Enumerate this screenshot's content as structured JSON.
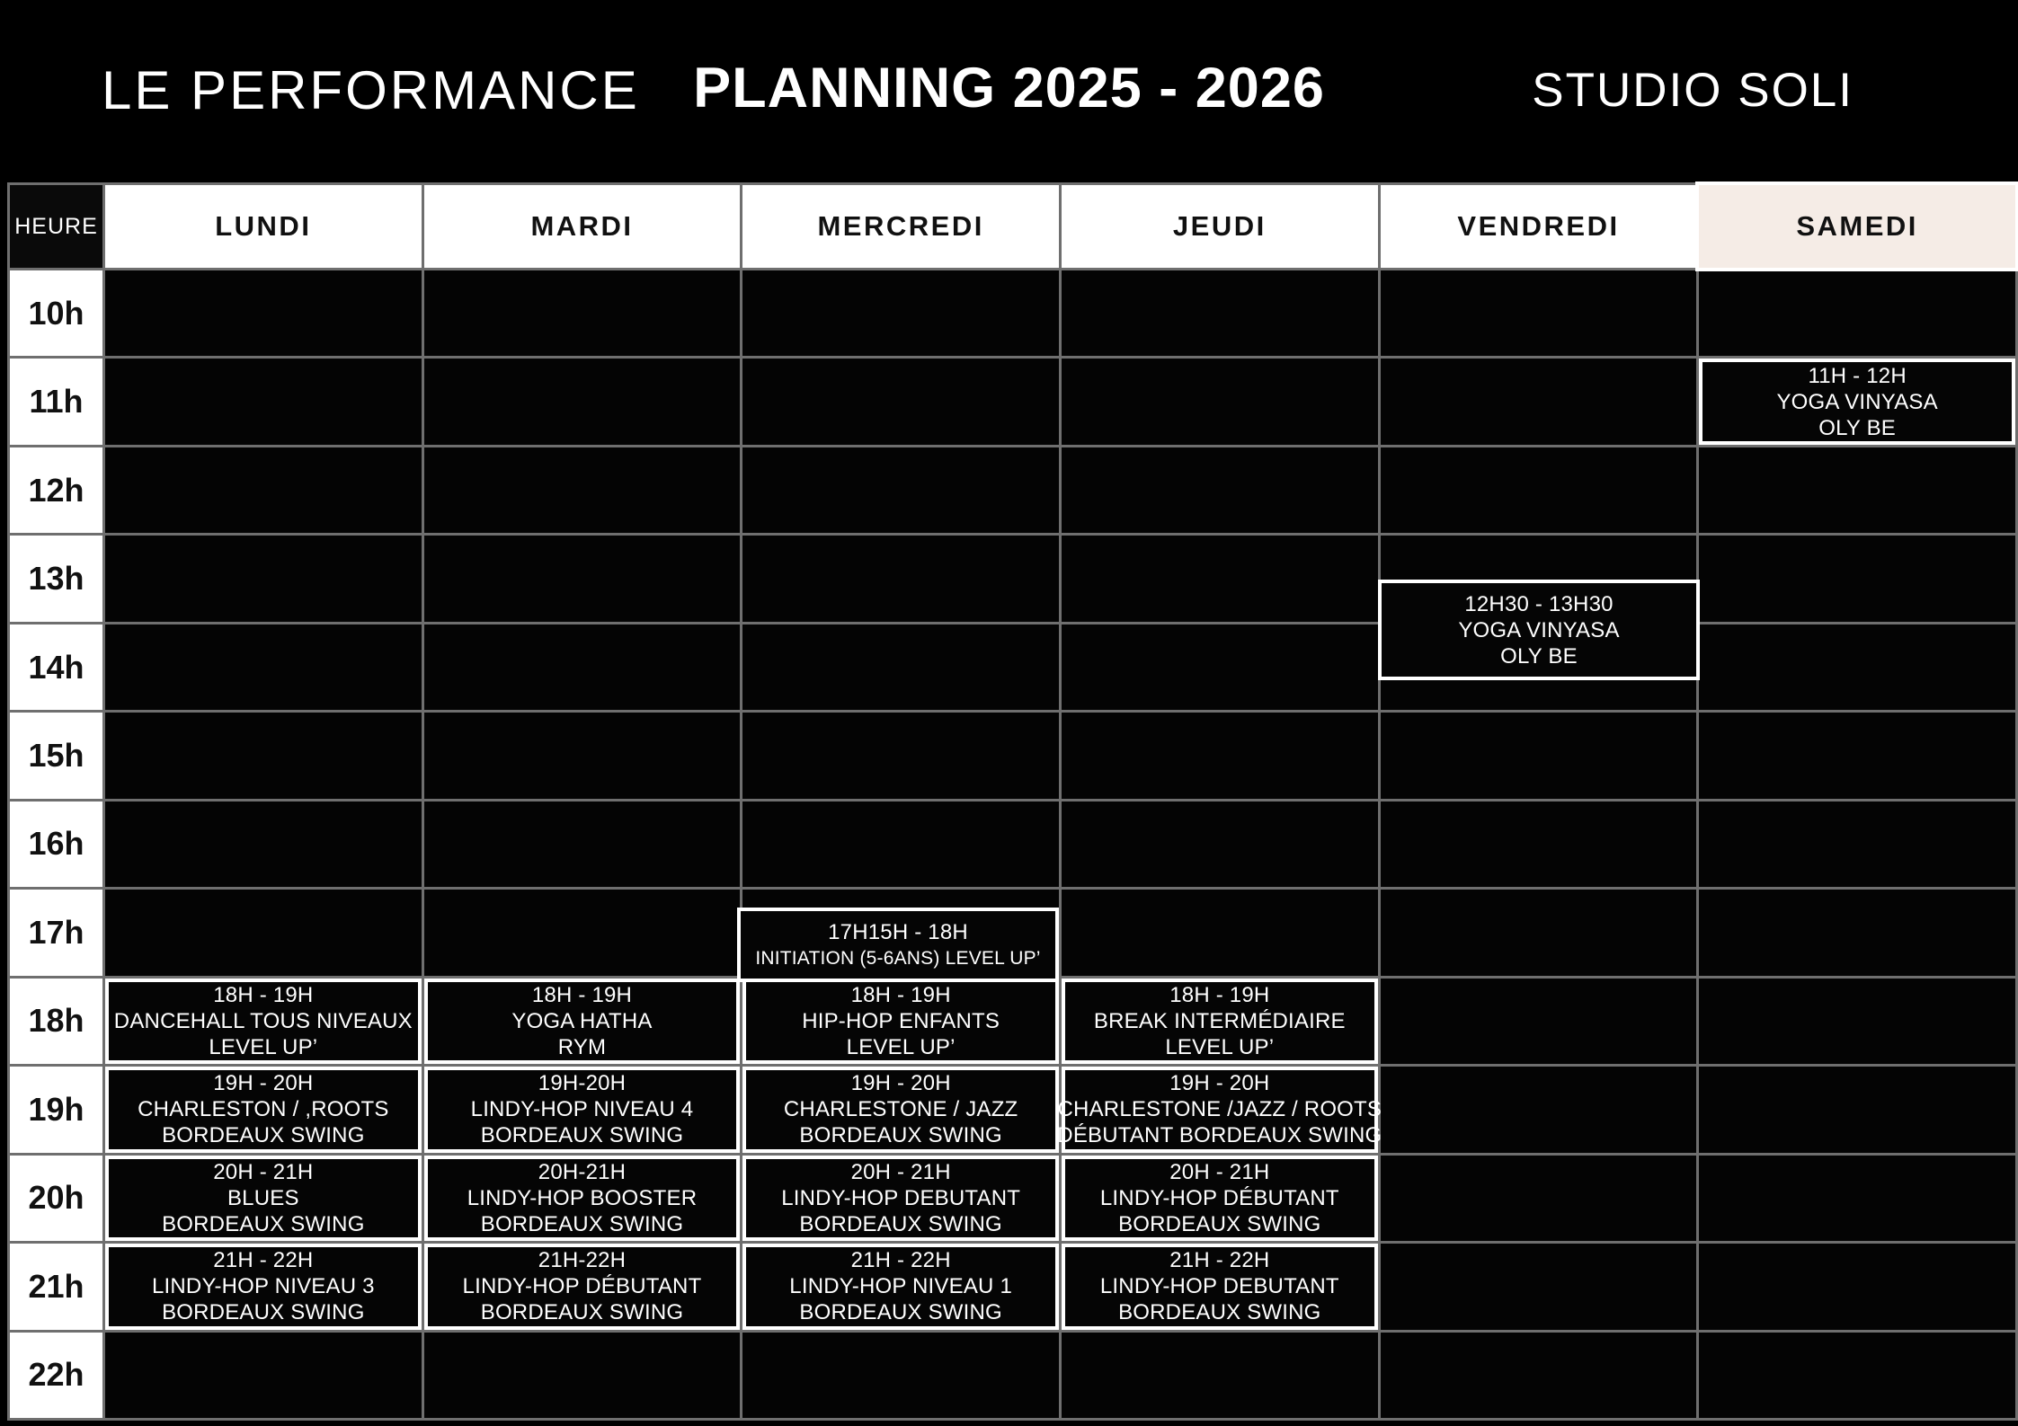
{
  "title_bar": {
    "left": "LE PERFORMANCE",
    "center": "PLANNING 2025 - 2026",
    "right": "STUDIO SOLI"
  },
  "table": {
    "hour_column_header": "HEURE",
    "day_headers": [
      "LUNDI",
      "MARDI",
      "MERCREDI",
      "JEUDI",
      "VENDREDI",
      "SAMEDI"
    ],
    "hours": [
      "10h",
      "11h",
      "12h",
      "13h",
      "14h",
      "15h",
      "16h",
      "17h",
      "18h",
      "19h",
      "20h",
      "21h",
      "22h"
    ]
  },
  "events": {
    "samedi_11h": {
      "lines": [
        "11H - 12H",
        "YOGA VINYASA",
        "OLY BE"
      ]
    },
    "vendredi_12h30": {
      "lines": [
        "12H30 - 13H30",
        "YOGA VINYASA",
        "OLY BE"
      ]
    },
    "mercredi_17h15": {
      "lines": [
        "17H15H - 18H",
        "INITIATION (5-6ANS) LEVEL UP’"
      ]
    },
    "lundi_18h": {
      "lines": [
        "18H - 19H",
        "DANCEHALL TOUS NIVEAUX",
        "LEVEL UP’"
      ]
    },
    "mardi_18h": {
      "lines": [
        "18H - 19H",
        "YOGA HATHA",
        "RYM"
      ]
    },
    "mercredi_18h": {
      "lines": [
        "18H - 19H",
        "HIP-HOP ENFANTS",
        "LEVEL UP’"
      ]
    },
    "jeudi_18h": {
      "lines": [
        "18H - 19H",
        "BREAK INTERMÉDIAIRE",
        "LEVEL UP’"
      ]
    },
    "lundi_19h": {
      "lines": [
        "19H - 20H",
        "CHARLESTON / ,ROOTS",
        "BORDEAUX SWING"
      ]
    },
    "mardi_19h": {
      "lines": [
        "19H-20H",
        "LINDY-HOP NIVEAU 4",
        "BORDEAUX SWING"
      ]
    },
    "mercredi_19h": {
      "lines": [
        "19H - 20H",
        "CHARLESTONE / JAZZ",
        "BORDEAUX SWING"
      ]
    },
    "jeudi_19h": {
      "lines": [
        "19H - 20H",
        "CHARLESTONE /JAZZ / ROOTS",
        "DÉBUTANT BORDEAUX SWING"
      ]
    },
    "lundi_20h": {
      "lines": [
        "20H - 21H",
        "BLUES",
        "BORDEAUX SWING"
      ]
    },
    "mardi_20h": {
      "lines": [
        "20H-21H",
        "LINDY-HOP BOOSTER",
        "BORDEAUX SWING"
      ]
    },
    "mercredi_20h": {
      "lines": [
        "20H - 21H",
        "LINDY-HOP DEBUTANT",
        "BORDEAUX SWING"
      ]
    },
    "jeudi_20h": {
      "lines": [
        "20H - 21H",
        "LINDY-HOP DÉBUTANT",
        "BORDEAUX SWING"
      ]
    },
    "lundi_21h": {
      "lines": [
        "21H - 22H",
        "LINDY-HOP NIVEAU 3",
        "BORDEAUX SWING"
      ]
    },
    "mardi_21h": {
      "lines": [
        "21H-22H",
        "LINDY-HOP DÉBUTANT",
        "BORDEAUX SWING"
      ]
    },
    "mercredi_21h": {
      "lines": [
        "21H - 22H",
        "LINDY-HOP NIVEAU 1",
        "BORDEAUX SWING"
      ]
    },
    "jeudi_21h": {
      "lines": [
        "21H - 22H",
        "LINDY-HOP DEBUTANT",
        "BORDEAUX SWING"
      ]
    }
  },
  "colors": {
    "page_bg": "#000000",
    "grid_line": "#6f6f6f",
    "cell_bg": "#040404",
    "header_cell_bg": "#ffffff",
    "samedi_header_bg": "#f5ece6",
    "event_bg": "#050505",
    "event_border": "#ffffff",
    "text_light": "#ffffff",
    "text_dark": "#111111"
  }
}
